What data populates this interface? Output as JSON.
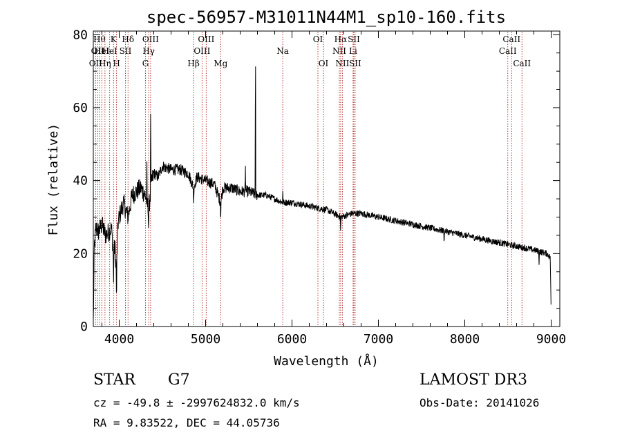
{
  "chart_data": {
    "type": "line",
    "title": "spec-56957-M31011N44M1_sp10-160.fits",
    "xlabel": "Wavelength (Å)",
    "ylabel": "Flux (relative)",
    "xlim": [
      3700,
      9100
    ],
    "ylim": [
      0,
      81
    ],
    "xticks": [
      {
        "value": 4000,
        "label": "4000"
      },
      {
        "value": 5000,
        "label": "5000"
      },
      {
        "value": 6000,
        "label": "6000"
      },
      {
        "value": 7000,
        "label": "7000"
      },
      {
        "value": 8000,
        "label": "8000"
      },
      {
        "value": 9000,
        "label": "9000"
      }
    ],
    "yticks": [
      {
        "value": 0,
        "label": "0"
      },
      {
        "value": 20,
        "label": "20"
      },
      {
        "value": 40,
        "label": "40"
      },
      {
        "value": 60,
        "label": "60"
      },
      {
        "value": 80,
        "label": "80"
      }
    ],
    "spectrum_anchors": [
      [
        3700,
        1
      ],
      [
        3705,
        10
      ],
      [
        3712,
        22
      ],
      [
        3730,
        27
      ],
      [
        3760,
        26
      ],
      [
        3800,
        28
      ],
      [
        3840,
        25
      ],
      [
        3880,
        26
      ],
      [
        3910,
        27
      ],
      [
        3933,
        20
      ],
      [
        3950,
        22
      ],
      [
        3968,
        15
      ],
      [
        3985,
        28
      ],
      [
        4000,
        30
      ],
      [
        4050,
        34
      ],
      [
        4101,
        30
      ],
      [
        4150,
        36
      ],
      [
        4200,
        37
      ],
      [
        4250,
        38
      ],
      [
        4300,
        36
      ],
      [
        4340,
        32
      ],
      [
        4380,
        40
      ],
      [
        4400,
        42
      ],
      [
        4450,
        41
      ],
      [
        4500,
        44
      ],
      [
        4600,
        43
      ],
      [
        4700,
        43
      ],
      [
        4800,
        42
      ],
      [
        4861,
        38
      ],
      [
        4900,
        41
      ],
      [
        5000,
        40
      ],
      [
        5100,
        39
      ],
      [
        5175,
        34
      ],
      [
        5200,
        38
      ],
      [
        5300,
        38
      ],
      [
        5400,
        37
      ],
      [
        5500,
        37
      ],
      [
        5600,
        36
      ],
      [
        5700,
        36
      ],
      [
        5800,
        35
      ],
      [
        5893,
        34
      ],
      [
        6000,
        34
      ],
      [
        6200,
        33
      ],
      [
        6400,
        32
      ],
      [
        6563,
        30
      ],
      [
        6700,
        31
      ],
      [
        6800,
        31
      ],
      [
        7000,
        30
      ],
      [
        7200,
        29
      ],
      [
        7400,
        28
      ],
      [
        7600,
        27
      ],
      [
        7800,
        26
      ],
      [
        8000,
        25
      ],
      [
        8200,
        24
      ],
      [
        8400,
        23
      ],
      [
        8600,
        22
      ],
      [
        8800,
        21
      ],
      [
        8950,
        20
      ],
      [
        8990,
        19
      ],
      [
        9000,
        2
      ]
    ],
    "spectrum_features": [
      {
        "wavelength": 3934,
        "depth": -9
      },
      {
        "wavelength": 3969,
        "depth": -11
      },
      {
        "wavelength": 4340,
        "depth": -6
      },
      {
        "wavelength": 4364,
        "depth": 26
      },
      {
        "wavelength": 4320,
        "depth": 12
      },
      {
        "wavelength": 4861,
        "depth": -5
      },
      {
        "wavelength": 5175,
        "depth": -5
      },
      {
        "wavelength": 5461,
        "depth": 6
      },
      {
        "wavelength": 5577,
        "depth": 45
      },
      {
        "wavelength": 5893,
        "depth": 3
      },
      {
        "wavelength": 6563,
        "depth": -5
      },
      {
        "wavelength": 7761,
        "depth": -4
      },
      {
        "wavelength": 8860,
        "depth": -3
      }
    ],
    "line_markers": [
      {
        "wavelength": 3727,
        "label": "OII",
        "row": 2
      },
      {
        "wavelength": 3750,
        "label": "OII",
        "row": 1
      },
      {
        "wavelength": 3771,
        "label": "Hθ",
        "row": 0
      },
      {
        "wavelength": 3798,
        "label": "HeI",
        "row": 1
      },
      {
        "wavelength": 3835,
        "label": "Hη",
        "row": 2
      },
      {
        "wavelength": 3889,
        "label": "HeI",
        "row": 1
      },
      {
        "wavelength": 3934,
        "label": "K",
        "row": 0
      },
      {
        "wavelength": 3969,
        "label": "H",
        "row": 2
      },
      {
        "wavelength": 4072,
        "label": "SII",
        "row": 1
      },
      {
        "wavelength": 4102,
        "label": "Hδ",
        "row": 0
      },
      {
        "wavelength": 4304,
        "label": "G",
        "row": 2
      },
      {
        "wavelength": 4341,
        "label": "Hγ",
        "row": 1
      },
      {
        "wavelength": 4363,
        "label": "OIII",
        "row": 0
      },
      {
        "wavelength": 4861,
        "label": "Hβ",
        "row": 2
      },
      {
        "wavelength": 4959,
        "label": "OIII",
        "row": 1
      },
      {
        "wavelength": 5007,
        "label": "OIII",
        "row": 0
      },
      {
        "wavelength": 5175,
        "label": "Mg",
        "row": 2
      },
      {
        "wavelength": 5893,
        "label": "Na",
        "row": 1
      },
      {
        "wavelength": 6300,
        "label": "OI",
        "row": 0
      },
      {
        "wavelength": 6364,
        "label": "OI",
        "row": 2
      },
      {
        "wavelength": 6548,
        "label": "NII",
        "row": 1
      },
      {
        "wavelength": 6563,
        "label": "Hα",
        "row": 0
      },
      {
        "wavelength": 6583,
        "label": "NII",
        "row": 2
      },
      {
        "wavelength": 6707,
        "label": "Li",
        "row": 1
      },
      {
        "wavelength": 6716,
        "label": "SII",
        "row": 0
      },
      {
        "wavelength": 6731,
        "label": "SII",
        "row": 2
      },
      {
        "wavelength": 8498,
        "label": "CaII",
        "row": 1
      },
      {
        "wavelength": 8542,
        "label": "CaII",
        "row": 0
      },
      {
        "wavelength": 8662,
        "label": "CaII",
        "row": 2
      }
    ]
  },
  "info": {
    "object_class": "STAR",
    "subclass": "G7",
    "survey": "LAMOST DR3",
    "redshift_line": "cz = -49.8 ± -2997624832.0 km/s",
    "obs_date_line": "Obs-Date: 20141026",
    "coords_line": "RA =   9.83522, DEC =  44.05736"
  }
}
